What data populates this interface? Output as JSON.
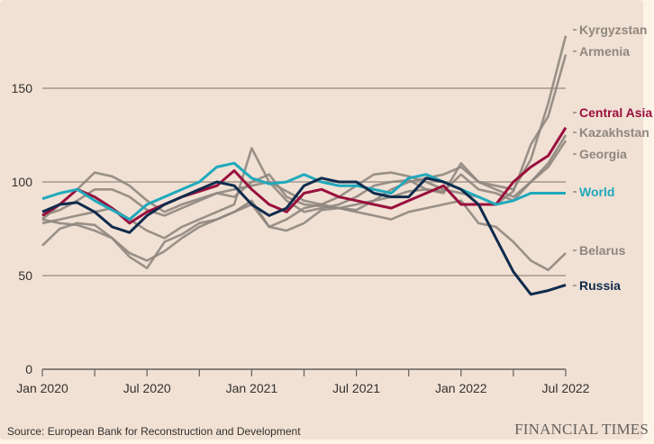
{
  "chart_data": {
    "type": "line",
    "title": "",
    "xlabel": "",
    "ylabel": "",
    "ylim": [
      0,
      175
    ],
    "yticks": [
      0,
      50,
      100,
      150
    ],
    "grid": true,
    "x": [
      "Jan 2020",
      "Feb 2020",
      "Mar 2020",
      "Apr 2020",
      "May 2020",
      "Jun 2020",
      "Jul 2020",
      "Aug 2020",
      "Sep 2020",
      "Oct 2020",
      "Nov 2020",
      "Dec 2020",
      "Jan 2021",
      "Feb 2021",
      "Mar 2021",
      "Apr 2021",
      "May 2021",
      "Jun 2021",
      "Jul 2021",
      "Aug 2021",
      "Sep 2021",
      "Oct 2021",
      "Nov 2021",
      "Dec 2021",
      "Jan 2022",
      "Feb 2022",
      "Mar 2022",
      "Apr 2022",
      "May 2022",
      "Jun 2022",
      "Jul 2022"
    ],
    "xtick_labels": [
      "Jan 2020",
      "Jul 2020",
      "Jan 2021",
      "Jul 2021",
      "Jan 2022",
      "Jul 2022"
    ],
    "series": [
      {
        "name": "Kyrgyzstan",
        "color": "#8f8780",
        "highlight": false,
        "values": [
          80,
          88,
          96,
          105,
          103,
          98,
          90,
          84,
          88,
          91,
          94,
          92,
          100,
          104,
          92,
          88,
          87,
          86,
          85,
          90,
          96,
          100,
          102,
          104,
          108,
          100,
          98,
          96,
          112,
          142,
          178
        ]
      },
      {
        "name": "Armenia",
        "color": "#8f8780",
        "highlight": false,
        "values": [
          82,
          85,
          90,
          96,
          96,
          92,
          85,
          82,
          86,
          90,
          94,
          96,
          98,
          100,
          95,
          90,
          88,
          92,
          98,
          104,
          105,
          103,
          100,
          96,
          94,
          92,
          88,
          95,
          120,
          135,
          168
        ]
      },
      {
        "name": "Kazakhstan",
        "color": "#8f8780",
        "highlight": false,
        "values": [
          78,
          80,
          82,
          84,
          86,
          80,
          74,
          70,
          76,
          80,
          84,
          88,
          118,
          100,
          90,
          84,
          86,
          88,
          92,
          98,
          100,
          101,
          96,
          95,
          104,
          96,
          94,
          90,
          100,
          110,
          125
        ]
      },
      {
        "name": "Georgia",
        "color": "#8f8780",
        "highlight": false,
        "values": [
          66,
          75,
          78,
          77,
          70,
          60,
          54,
          68,
          72,
          78,
          80,
          84,
          88,
          76,
          74,
          78,
          85,
          86,
          88,
          90,
          92,
          95,
          96,
          94,
          110,
          100,
          96,
          92,
          100,
          108,
          122
        ]
      },
      {
        "name": "Belarus",
        "color": "#8f8780",
        "highlight": false,
        "values": [
          80,
          78,
          77,
          74,
          70,
          62,
          58,
          63,
          70,
          76,
          80,
          84,
          90,
          76,
          80,
          86,
          88,
          86,
          84,
          82,
          80,
          84,
          86,
          88,
          90,
          78,
          76,
          68,
          58,
          53,
          62
        ]
      },
      {
        "name": "Central Asia",
        "color": "#990f3d",
        "highlight": true,
        "values": [
          82,
          88,
          96,
          92,
          86,
          78,
          84,
          88,
          92,
          95,
          98,
          106,
          96,
          88,
          84,
          94,
          96,
          92,
          90,
          88,
          86,
          90,
          94,
          98,
          88,
          88,
          88,
          100,
          108,
          114,
          129
        ]
      },
      {
        "name": "World",
        "color": "#1fa9bc",
        "highlight": true,
        "values": [
          91,
          94,
          96,
          90,
          85,
          80,
          88,
          92,
          96,
          100,
          108,
          110,
          102,
          99,
          100,
          104,
          100,
          98,
          98,
          96,
          94,
          102,
          104,
          100,
          96,
          92,
          88,
          90,
          94,
          94,
          94
        ]
      },
      {
        "name": "Russia",
        "color": "#0f2b4d",
        "highlight": true,
        "values": [
          84,
          88,
          89,
          84,
          76,
          73,
          82,
          88,
          92,
          96,
          100,
          98,
          88,
          82,
          86,
          98,
          102,
          100,
          100,
          94,
          92,
          92,
          102,
          100,
          96,
          88,
          70,
          52,
          40,
          42,
          45
        ]
      }
    ],
    "label_order": [
      "Kyrgyzstan",
      "Armenia",
      "Central Asia",
      "Kazakhstan",
      "Georgia",
      "World",
      "Belarus",
      "Russia"
    ]
  },
  "footer": {
    "source": "Source: European Bank for Reconstruction and Development",
    "brand": "FINANCIAL TIMES"
  }
}
